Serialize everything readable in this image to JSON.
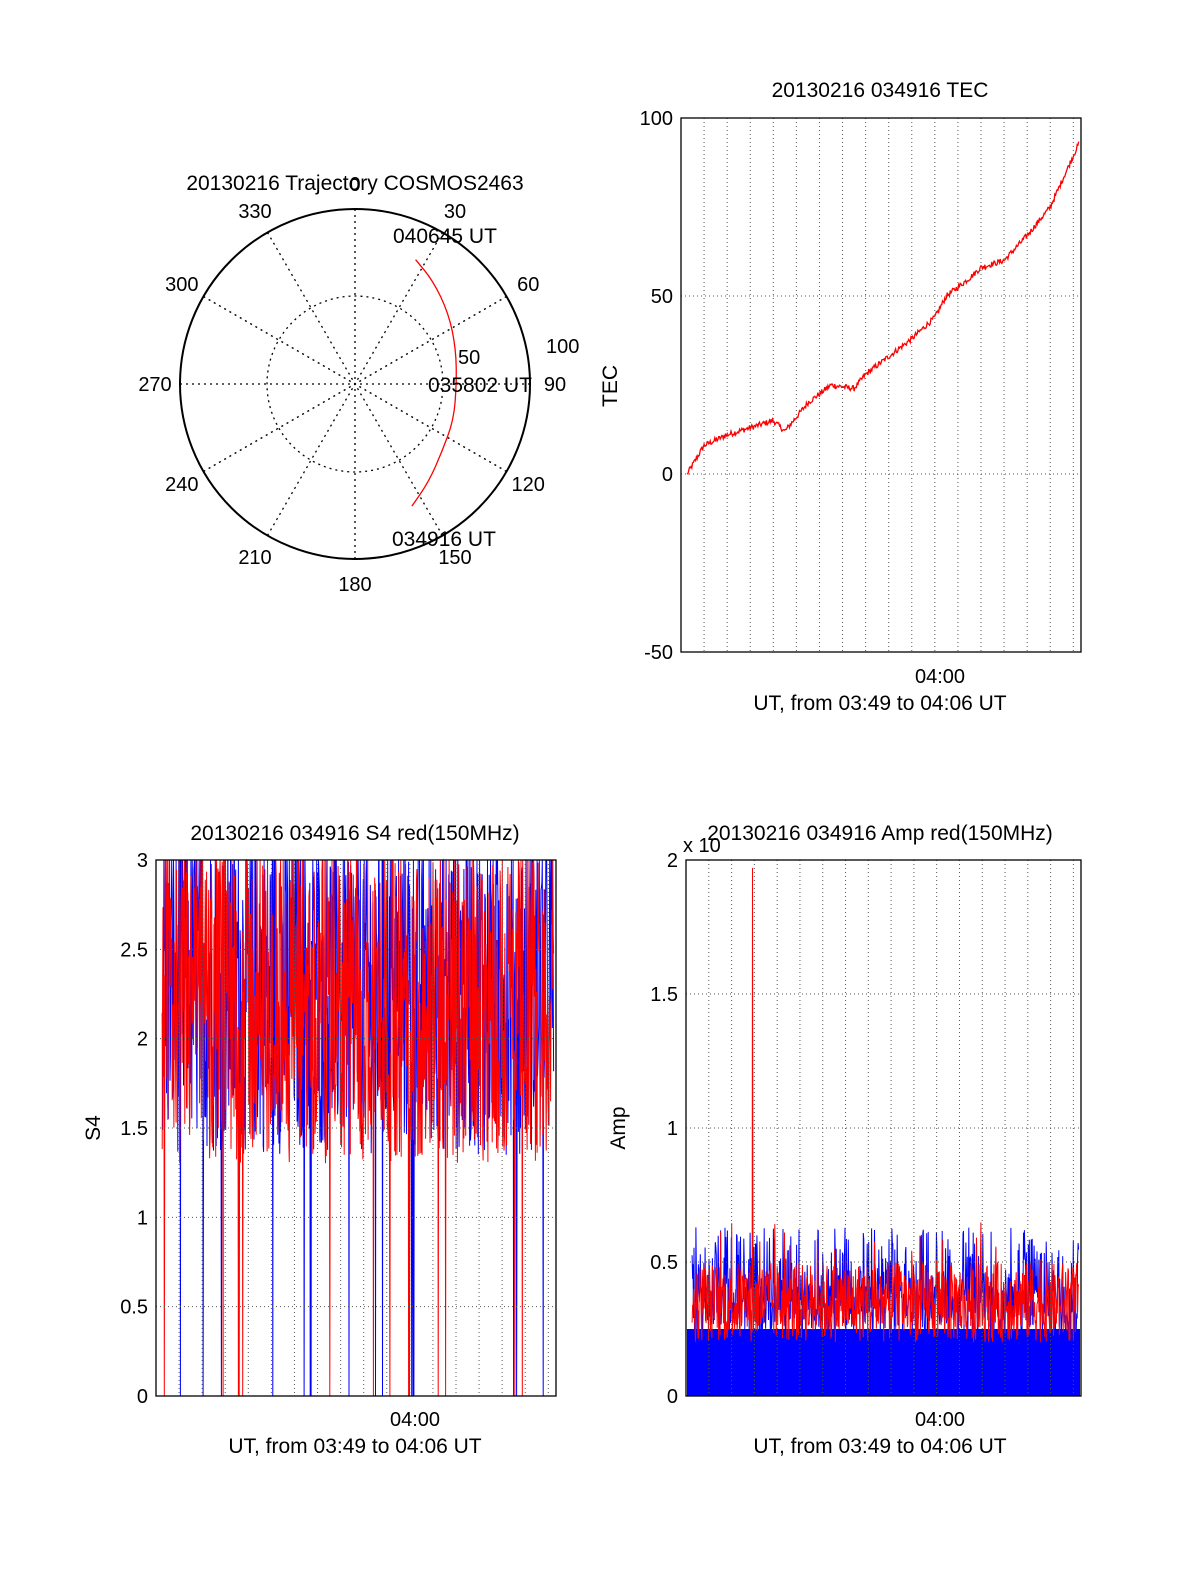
{
  "chart_data": [
    {
      "type": "polar",
      "title": "20130216 Trajectory COSMOS2463",
      "angle_labels": [
        "0",
        "30",
        "60",
        "90",
        "120",
        "150",
        "180",
        "210",
        "240",
        "270",
        "300",
        "330"
      ],
      "radial_labels": [
        "50",
        "100"
      ],
      "annotations": {
        "end": "040645 UT",
        "mid": "035802 UT",
        "start": "034916 UT"
      },
      "trajectory": [
        {
          "azimuth": 155,
          "zenith": 77
        },
        {
          "azimuth": 143,
          "zenith": 70
        },
        {
          "azimuth": 128,
          "zenith": 63
        },
        {
          "azimuth": 110,
          "zenith": 60
        },
        {
          "azimuth": 90,
          "zenith": 58
        },
        {
          "azimuth": 71,
          "zenith": 61
        },
        {
          "azimuth": 53,
          "zenith": 67
        },
        {
          "azimuth": 37,
          "zenith": 74
        },
        {
          "azimuth": 26,
          "zenith": 79
        }
      ],
      "line_color": "#ff0000"
    },
    {
      "type": "line",
      "title": "20130216 034916 TEC",
      "ylabel": "TEC",
      "xlabel": "UT, from 03:49 to 04:06 UT",
      "x_tick_label": "04:00",
      "y_ticks": [
        "100",
        "50",
        "0",
        "-50"
      ],
      "ylim": [
        -50,
        100
      ],
      "xlim": [
        "03:49",
        "04:06"
      ],
      "grid": true,
      "series": [
        {
          "color": "#ff0000",
          "x": [
            "03:49:16",
            "03:50:00",
            "03:51:00",
            "03:52:00",
            "03:53:00",
            "03:53:30",
            "03:54:30",
            "03:55:30",
            "03:56:30",
            "03:57:00",
            "03:58:00",
            "03:59:00",
            "04:00:00",
            "04:00:30",
            "04:01:30",
            "04:02:00",
            "04:03:00",
            "04:04:00",
            "04:05:00",
            "04:06:15"
          ],
          "values": [
            0,
            8,
            11,
            13,
            15,
            12,
            20,
            25,
            24,
            28,
            33,
            38,
            44,
            50,
            55,
            58,
            60,
            67,
            75,
            93
          ]
        }
      ]
    },
    {
      "type": "line",
      "title": "20130216 034916 S4 red(150MHz)",
      "ylabel": "S4",
      "xlabel": "UT, from 03:49 to 04:06 UT",
      "x_tick_label": "04:00",
      "y_ticks": [
        "3",
        "2.5",
        "2",
        "1.5",
        "1",
        "0.5",
        "0"
      ],
      "ylim": [
        0,
        3
      ],
      "xlim": [
        "03:49",
        "04:06"
      ],
      "grid": true,
      "series": [
        {
          "color": "#0000ff",
          "description": "dense noisy S4 trace, mostly between 1.3 and 3 with drops to 0"
        },
        {
          "color": "#ff0000",
          "description": "dense noisy S4 trace, mostly between 1.3 and 3 with drops to 0"
        }
      ]
    },
    {
      "type": "line",
      "title": "20130216 034916 Amp red(150MHz)",
      "ylabel": "Amp",
      "xlabel": "UT, from 03:49 to 04:06 UT",
      "x_tick_label": "04:00",
      "y_ticks": [
        "2",
        "1.5",
        "1",
        "0.5",
        "0"
      ],
      "y_multiplier": "x 10",
      "ylim": [
        0,
        2
      ],
      "xlim": [
        "03:49",
        "04:06"
      ],
      "grid": true,
      "series": [
        {
          "color": "#0000ff",
          "description": "dense noisy amplitude, filled to about 0.25, spikes to about 0.7"
        },
        {
          "color": "#ff0000",
          "description": "noisy amplitude 0.15-0.6 with single spike to 1.97 near 03:52"
        }
      ]
    }
  ]
}
